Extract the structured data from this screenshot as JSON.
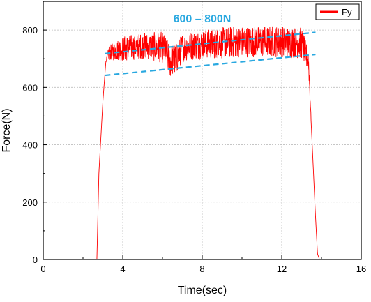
{
  "chart_data": {
    "type": "line",
    "title": "",
    "xlabel": "Time(sec)",
    "ylabel": "Force(N)",
    "xlim": [
      0,
      16
    ],
    "ylim": [
      0,
      900
    ],
    "x_ticks": [
      0,
      4,
      8,
      12,
      16
    ],
    "y_ticks": [
      0,
      200,
      400,
      600,
      800
    ],
    "grid": true,
    "legend_position": "top-right",
    "series": [
      {
        "name": "Fy",
        "color": "#ff0000",
        "x": [
          0,
          2.7,
          2.8,
          3.0,
          3.15,
          3.3,
          4,
          5,
          6,
          6.4,
          6.7,
          7,
          8,
          9,
          10,
          11,
          12,
          13,
          13.35,
          13.5,
          13.7,
          13.8,
          13.9,
          14.1
        ],
        "y": [
          0,
          0,
          300,
          550,
          690,
          720,
          735,
          745,
          740,
          690,
          700,
          740,
          750,
          755,
          760,
          760,
          760,
          755,
          690,
          450,
          150,
          20,
          0,
          0
        ],
        "band_half_width": [
          0,
          0,
          0,
          0,
          0,
          25,
          45,
          45,
          55,
          60,
          55,
          50,
          50,
          55,
          55,
          55,
          55,
          55,
          40,
          0,
          0,
          0,
          0,
          0
        ]
      }
    ],
    "annotations": [
      {
        "text": "600 – 800N",
        "color": "#29a8e0"
      }
    ],
    "guide_lines": [
      {
        "style": "dashed",
        "color": "#29a8e0",
        "x": [
          3.1,
          13.7
        ],
        "y": [
          718,
          792
        ]
      },
      {
        "style": "dashed",
        "color": "#29a8e0",
        "x": [
          3.1,
          13.7
        ],
        "y": [
          642,
          715
        ]
      }
    ]
  }
}
